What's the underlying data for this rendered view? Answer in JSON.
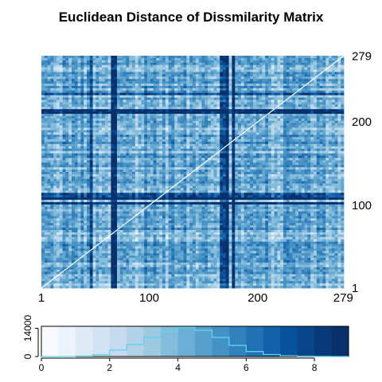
{
  "chart_data": [
    {
      "type": "heatmap",
      "title": "Euclidean Distance of Dissmilarity Matrix",
      "n": 279,
      "x_ticks": [
        "1",
        "100",
        "200",
        "279"
      ],
      "y_ticks": [
        "1",
        "100",
        "200",
        "279"
      ],
      "diagonal_color": "#ffffff",
      "palette": [
        "#f7fbff",
        "#e5f0fa",
        "#d4e5f4",
        "#c1d9ed",
        "#a5cde3",
        "#85bcdb",
        "#63a7d1",
        "#4993c6",
        "#3381bb",
        "#1f6eb2",
        "#0e5aa3",
        "#08478f",
        "#08306b"
      ],
      "dark_bands": [
        62,
        64,
        66,
        163,
        166,
        170,
        196,
        43,
        45,
        137,
        175
      ]
    },
    {
      "type": "bar",
      "categories": [
        "0-0.5",
        "0.5-1",
        "1-1.5",
        "1.5-2",
        "2-2.5",
        "2.5-3",
        "3-3.5",
        "3.5-4",
        "4-4.5",
        "4.5-5",
        "5-5.5",
        "5.5-6",
        "6-6.5",
        "6.5-7",
        "7-7.5",
        "7.5-8",
        "8-8.5",
        "8.5-9"
      ],
      "values": [
        0,
        50,
        250,
        900,
        3200,
        6000,
        9500,
        12500,
        14500,
        13000,
        9500,
        5500,
        2500,
        1000,
        400,
        150,
        50,
        10
      ],
      "xlim": [
        0,
        9
      ],
      "x_ticks": [
        "0",
        "2",
        "4",
        "6",
        "8"
      ],
      "y_ticks": [
        "0",
        "14000"
      ],
      "ylim": [
        0,
        15000
      ],
      "line_color": "#5fd3f0",
      "palette": [
        "#f7fbff",
        "#ebf3fb",
        "#deebf7",
        "#d2e3f3",
        "#c6dbef",
        "#b2d2e8",
        "#9ecae1",
        "#84bcdb",
        "#6baed6",
        "#57a0ce",
        "#4292c6",
        "#3282be",
        "#2171b5",
        "#1361a9",
        "#08519c",
        "#08458a",
        "#083a7a",
        "#08306b"
      ]
    }
  ]
}
